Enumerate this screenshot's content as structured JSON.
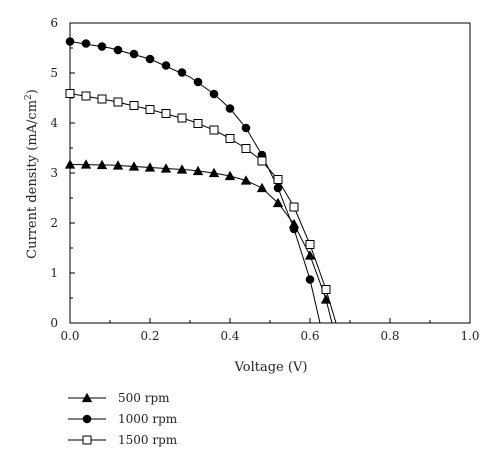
{
  "chart_data": {
    "type": "line",
    "xlabel": "Voltage (V)",
    "ylabel_main": "Current density (mA/cm",
    "ylabel_sup": "2",
    "ylabel_close": ")",
    "xlim": [
      0,
      1.0
    ],
    "ylim": [
      0,
      6
    ],
    "x_ticks": [
      0.0,
      0.2,
      0.4,
      0.6,
      0.8,
      1.0
    ],
    "x_tick_labels": [
      "0.0",
      "0.2",
      "0.4",
      "0.6",
      "0.8",
      "1.0"
    ],
    "y_ticks": [
      0,
      1,
      2,
      3,
      4,
      5,
      6
    ],
    "y_tick_labels": [
      "0",
      "1",
      "2",
      "3",
      "4",
      "5",
      "6"
    ],
    "grid": false,
    "legend_position": "bottom-left",
    "series": [
      {
        "name": "500 rpm",
        "marker": "triangle-filled",
        "x": [
          0.0,
          0.04,
          0.08,
          0.12,
          0.16,
          0.2,
          0.24,
          0.28,
          0.32,
          0.36,
          0.4,
          0.44,
          0.48,
          0.52,
          0.56,
          0.6,
          0.64
        ],
        "y": [
          3.17,
          3.17,
          3.16,
          3.15,
          3.13,
          3.11,
          3.09,
          3.07,
          3.04,
          3.0,
          2.94,
          2.85,
          2.7,
          2.4,
          1.98,
          1.35,
          0.47
        ],
        "curve_x": [
          0.0,
          0.1,
          0.2,
          0.3,
          0.36,
          0.4,
          0.44,
          0.48,
          0.52,
          0.56,
          0.6,
          0.62,
          0.64,
          0.655
        ],
        "curve_y": [
          3.17,
          3.16,
          3.11,
          3.06,
          3.0,
          2.94,
          2.85,
          2.7,
          2.4,
          1.98,
          1.35,
          0.92,
          0.47,
          0.0
        ]
      },
      {
        "name": "1000 rpm",
        "marker": "circle-filled",
        "x": [
          0.0,
          0.04,
          0.08,
          0.12,
          0.16,
          0.2,
          0.24,
          0.28,
          0.32,
          0.36,
          0.4,
          0.44,
          0.48,
          0.52,
          0.56,
          0.6
        ],
        "y": [
          5.63,
          5.59,
          5.53,
          5.46,
          5.38,
          5.28,
          5.15,
          5.01,
          4.82,
          4.58,
          4.29,
          3.9,
          3.36,
          2.7,
          1.88,
          0.87
        ],
        "curve_x": [
          0.0,
          0.1,
          0.2,
          0.3,
          0.36,
          0.4,
          0.44,
          0.48,
          0.52,
          0.56,
          0.6,
          0.625
        ],
        "curve_y": [
          5.63,
          5.5,
          5.28,
          4.92,
          4.58,
          4.29,
          3.9,
          3.36,
          2.7,
          1.88,
          0.87,
          0.0
        ]
      },
      {
        "name": "1500 rpm",
        "marker": "square-open",
        "x": [
          0.0,
          0.04,
          0.08,
          0.12,
          0.16,
          0.2,
          0.24,
          0.28,
          0.32,
          0.36,
          0.4,
          0.44,
          0.48,
          0.52,
          0.56,
          0.6,
          0.64
        ],
        "y": [
          4.59,
          4.54,
          4.48,
          4.42,
          4.35,
          4.27,
          4.19,
          4.1,
          3.99,
          3.86,
          3.69,
          3.49,
          3.24,
          2.87,
          2.32,
          1.57,
          0.67
        ],
        "curve_x": [
          0.0,
          0.1,
          0.2,
          0.3,
          0.36,
          0.4,
          0.44,
          0.48,
          0.52,
          0.56,
          0.6,
          0.64,
          0.665
        ],
        "curve_y": [
          4.59,
          4.45,
          4.27,
          4.05,
          3.86,
          3.69,
          3.49,
          3.24,
          2.87,
          2.32,
          1.57,
          0.67,
          0.0
        ]
      }
    ]
  }
}
